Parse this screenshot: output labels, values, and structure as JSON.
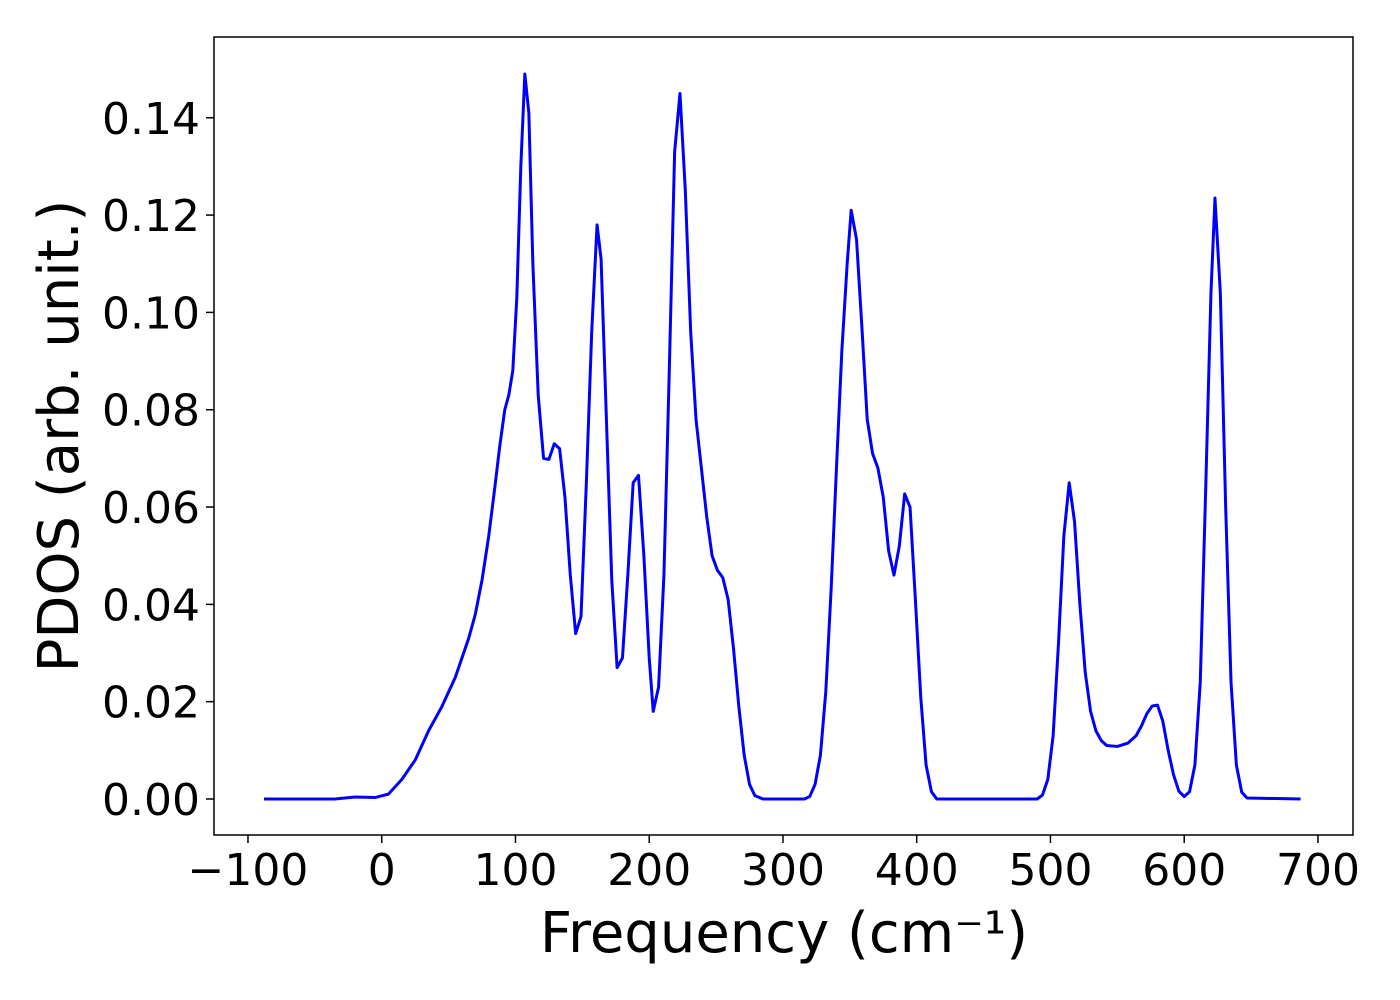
{
  "chart_data": {
    "type": "line",
    "xlabel": "Frequency (cm⁻¹)",
    "ylabel": "PDOS (arb. unit.)",
    "x": [
      -88,
      -35,
      -20,
      -5,
      5,
      15,
      25,
      35,
      45,
      55,
      65,
      70,
      75,
      80,
      85,
      88,
      92,
      95,
      98,
      101,
      104,
      107,
      110,
      113,
      117,
      121,
      125,
      129,
      133,
      137,
      141,
      145,
      149,
      153,
      157,
      161,
      164,
      168,
      172,
      176,
      180,
      184,
      188,
      192,
      196,
      200,
      203,
      207,
      211,
      215,
      219,
      223,
      227,
      231,
      235,
      239,
      243,
      247,
      251,
      255,
      259,
      263,
      267,
      271,
      275,
      279,
      285,
      316,
      320,
      324,
      328,
      332,
      336,
      340,
      344,
      348,
      351,
      355,
      359,
      363,
      367,
      371,
      375,
      379,
      383,
      387,
      391,
      395,
      399,
      403,
      407,
      411,
      415,
      490,
      494,
      498,
      502,
      506,
      510,
      514,
      518,
      522,
      526,
      530,
      534,
      538,
      542,
      550,
      558,
      564,
      568,
      572,
      576,
      580,
      584,
      588,
      592,
      596,
      600,
      604,
      608,
      612,
      616,
      620,
      623,
      627,
      631,
      635,
      639,
      643,
      647,
      687
    ],
    "series": [
      {
        "color": "#0000ff",
        "values": [
          0,
          0,
          0.0004,
          0.0003,
          0.001,
          0.004,
          0.008,
          0.014,
          0.019,
          0.025,
          0.033,
          0.038,
          0.045,
          0.054,
          0.065,
          0.072,
          0.08,
          0.083,
          0.088,
          0.103,
          0.13,
          0.149,
          0.141,
          0.11,
          0.083,
          0.07,
          0.0698,
          0.073,
          0.072,
          0.062,
          0.046,
          0.034,
          0.0375,
          0.065,
          0.096,
          0.118,
          0.111,
          0.078,
          0.045,
          0.027,
          0.029,
          0.046,
          0.065,
          0.0665,
          0.05,
          0.029,
          0.018,
          0.023,
          0.046,
          0.088,
          0.133,
          0.145,
          0.125,
          0.096,
          0.078,
          0.068,
          0.058,
          0.05,
          0.047,
          0.0455,
          0.041,
          0.031,
          0.019,
          0.009,
          0.003,
          0.0007,
          0,
          0,
          0.0005,
          0.003,
          0.009,
          0.022,
          0.043,
          0.068,
          0.092,
          0.11,
          0.121,
          0.115,
          0.097,
          0.078,
          0.071,
          0.068,
          0.062,
          0.051,
          0.046,
          0.052,
          0.0627,
          0.06,
          0.041,
          0.021,
          0.007,
          0.0015,
          0,
          0,
          0.0008,
          0.004,
          0.013,
          0.032,
          0.054,
          0.065,
          0.057,
          0.04,
          0.026,
          0.018,
          0.014,
          0.012,
          0.011,
          0.0108,
          0.0115,
          0.013,
          0.015,
          0.0175,
          0.0191,
          0.0193,
          0.016,
          0.01,
          0.005,
          0.0016,
          0.0005,
          0.0015,
          0.007,
          0.024,
          0.063,
          0.104,
          0.1235,
          0.104,
          0.06,
          0.024,
          0.007,
          0.0014,
          0.0002,
          0
        ]
      }
    ],
    "xlim": [
      -125.4,
      726.2
    ],
    "ylim": [
      -0.0074,
      0.1566
    ],
    "xticks": [
      {
        "value": -100,
        "label": "−100"
      },
      0,
      100,
      200,
      300,
      400,
      500,
      600,
      700
    ],
    "yticks": [
      {
        "value": 0,
        "label": "0.00"
      },
      {
        "value": 0.02,
        "label": "0.02"
      },
      {
        "value": 0.04,
        "label": "0.04"
      },
      {
        "value": 0.06,
        "label": "0.06"
      },
      {
        "value": 0.08,
        "label": "0.08"
      },
      {
        "value": 0.1,
        "label": "0.10"
      },
      {
        "value": 0.12,
        "label": "0.12"
      },
      {
        "value": 0.14,
        "label": "0.14"
      }
    ]
  }
}
